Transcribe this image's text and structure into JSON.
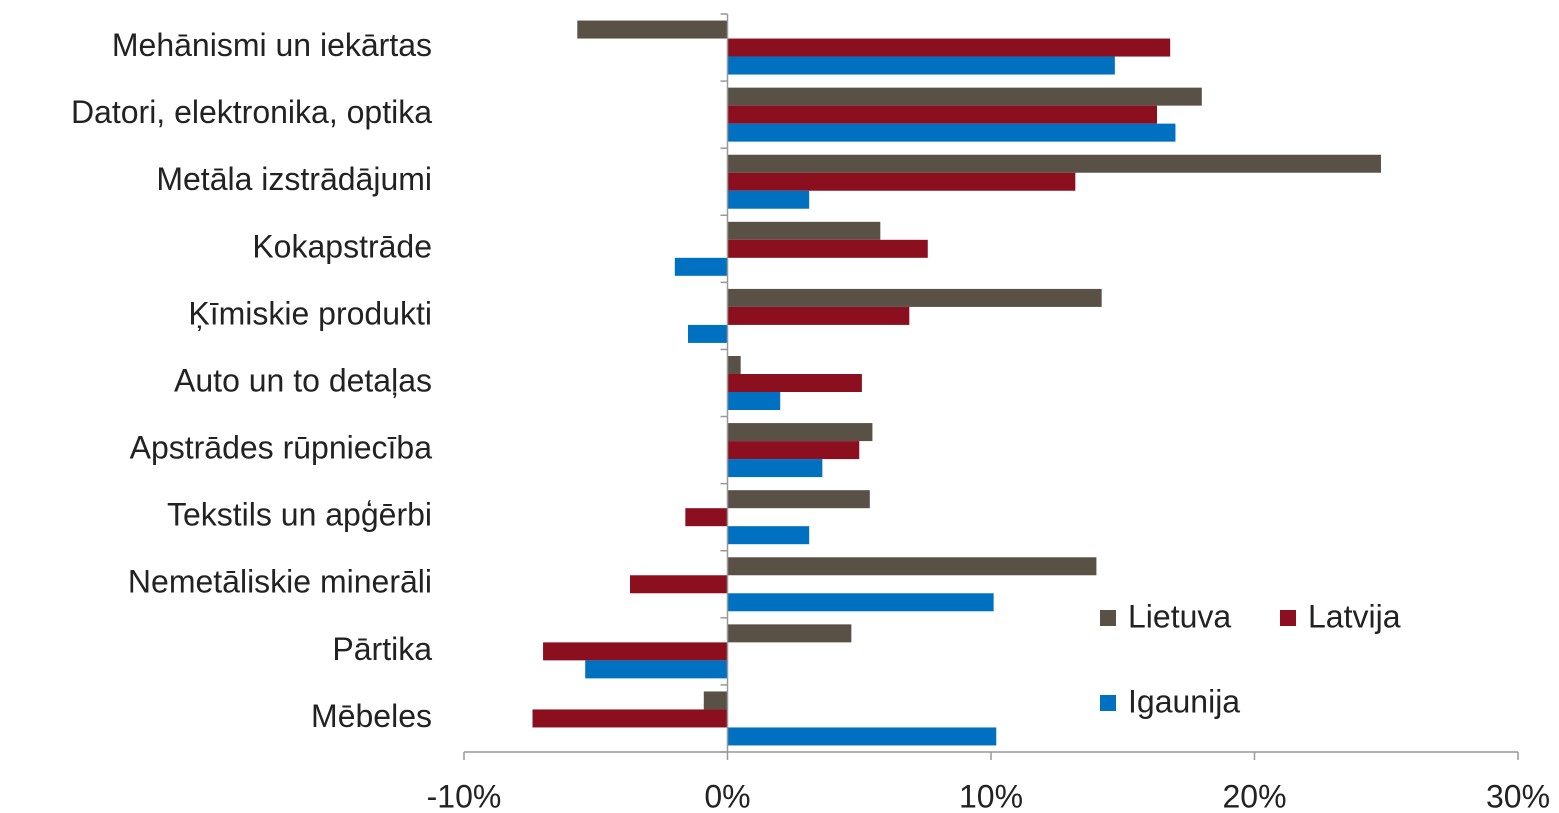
{
  "chart_data": {
    "type": "bar",
    "orientation": "horizontal",
    "categories": [
      "Mehānismi un iekārtas",
      "Datori, elektronika, optika",
      "Metāla izstrādājumi",
      "Kokapstrāde",
      "Ķīmiskie produkti",
      "Auto un to detaļas",
      "Apstrādes rūpniecība",
      "Tekstils un apģērbi",
      "Nemetāliskie minerāli",
      "Pārtika",
      "Mēbeles"
    ],
    "series": [
      {
        "name": "Lietuva",
        "color": "#595046",
        "values": [
          -5.7,
          18.0,
          24.8,
          5.8,
          14.2,
          0.5,
          5.5,
          5.4,
          14.0,
          4.7,
          -0.9
        ]
      },
      {
        "name": "Latvija",
        "color": "#8b0f1f",
        "values": [
          16.8,
          16.3,
          13.2,
          7.6,
          6.9,
          5.1,
          5.0,
          -1.6,
          -3.7,
          -7.0,
          -7.4
        ]
      },
      {
        "name": "Igaunija",
        "color": "#0070c0",
        "values": [
          14.7,
          17.0,
          3.1,
          -2.0,
          -1.5,
          2.0,
          3.6,
          3.1,
          10.1,
          -5.4,
          10.2
        ]
      }
    ],
    "xlim": [
      -10,
      30
    ],
    "xticks": [
      {
        "value": -10,
        "label": "-10%"
      },
      {
        "value": 0,
        "label": "0%"
      },
      {
        "value": 10,
        "label": "10%"
      },
      {
        "value": 20,
        "label": "20%"
      },
      {
        "value": 30,
        "label": "30%"
      }
    ],
    "grid": false,
    "legend": "lower right"
  }
}
